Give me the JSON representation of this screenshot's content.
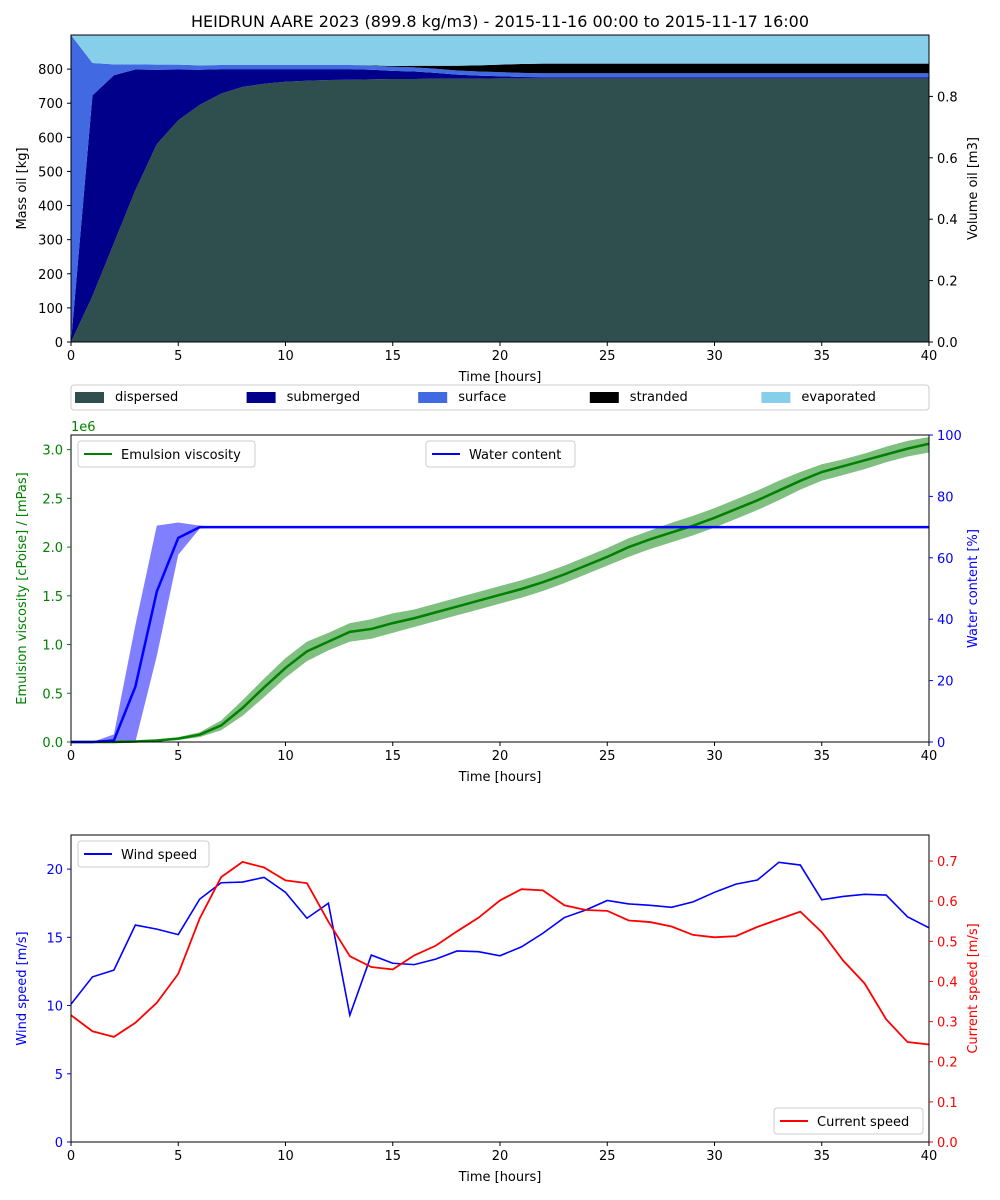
{
  "title": "HEIDRUN AARE 2023 (899.8 kg/m3) - 2015-11-16 00:00 to 2015-11-17 16:00",
  "chart_data": [
    {
      "type": "area",
      "subtype": "stacked",
      "xlabel": "Time  [hours]",
      "ylabel": "Mass oil  [kg]",
      "ylabel_right": "Volume oil [m3]",
      "xlim": [
        0,
        40
      ],
      "ylim": [
        0,
        900
      ],
      "ylim_right": [
        0,
        1.0
      ],
      "xticks": [
        0,
        5,
        10,
        15,
        20,
        25,
        30,
        35,
        40
      ],
      "yticks": [
        0,
        100,
        200,
        300,
        400,
        500,
        600,
        700,
        800
      ],
      "yticks_right": [
        "0.0",
        "0.2",
        "0.4",
        "0.6",
        "0.8"
      ],
      "legend_position": "below",
      "x": [
        0,
        1,
        2,
        3,
        4,
        5,
        6,
        7,
        8,
        9,
        10,
        11,
        12,
        13,
        14,
        15,
        16,
        17,
        18,
        19,
        20,
        21,
        22,
        23,
        24,
        25,
        26,
        27,
        28,
        29,
        30,
        31,
        32,
        33,
        34,
        35,
        36,
        37,
        38,
        39,
        40
      ],
      "series": [
        {
          "name": "dispersed",
          "color": "#2f4f4f",
          "values": [
            0,
            135,
            290,
            445,
            580,
            650,
            695,
            728,
            748,
            757,
            763,
            766,
            768,
            769,
            770,
            771,
            771,
            772,
            772,
            772,
            773,
            773,
            773,
            773,
            773,
            773,
            773,
            773,
            773,
            773,
            773,
            773,
            773,
            773,
            773,
            773,
            773,
            773,
            773,
            773,
            773
          ]
        },
        {
          "name": "submerged",
          "color": "#00008b",
          "values": [
            0,
            588,
            492,
            354,
            218,
            149,
            103,
            72,
            52,
            43,
            37,
            34,
            32,
            31,
            28,
            24,
            22,
            17,
            12,
            9,
            6,
            4,
            3,
            3,
            3,
            3,
            3,
            3,
            3,
            3,
            3,
            3,
            3,
            3,
            3,
            3,
            3,
            3,
            3,
            3,
            3
          ]
        },
        {
          "name": "surface",
          "color": "#4169e1",
          "values": [
            900,
            95,
            32,
            15,
            15,
            14,
            13,
            12,
            12,
            12,
            12,
            12,
            12,
            12,
            12,
            12,
            12,
            12,
            12,
            12,
            12,
            12,
            12,
            12,
            12,
            12,
            12,
            12,
            12,
            12,
            12,
            12,
            12,
            12,
            12,
            12,
            12,
            12,
            12,
            12,
            12
          ]
        },
        {
          "name": "stranded",
          "color": "#000000",
          "values": [
            0,
            0,
            0,
            0,
            0,
            0,
            0,
            0,
            0,
            0,
            0,
            0,
            0,
            0,
            1,
            2,
            5,
            9,
            14,
            18,
            22,
            26,
            28,
            28,
            28,
            28,
            28,
            28,
            28,
            28,
            28,
            28,
            28,
            28,
            28,
            28,
            28,
            28,
            28,
            28,
            28
          ]
        },
        {
          "name": "evaporated",
          "color": "#87ceeb",
          "values": [
            0,
            82,
            86,
            86,
            87,
            87,
            89,
            88,
            88,
            88,
            88,
            88,
            88,
            88,
            89,
            91,
            90,
            90,
            90,
            89,
            87,
            85,
            84,
            84,
            84,
            84,
            84,
            84,
            84,
            84,
            84,
            84,
            84,
            84,
            84,
            84,
            84,
            84,
            84,
            84,
            84
          ]
        }
      ]
    },
    {
      "type": "line",
      "xlabel": "Time [hours]",
      "ylabel": "Emulsion viscosity  [cPoise] / [mPas]",
      "ylabel_right": "Water content  [%]",
      "offset_text": "1e6",
      "xlim": [
        0,
        40
      ],
      "ylim": [
        0,
        3.15
      ],
      "ylim_right": [
        0,
        100
      ],
      "xticks": [
        0,
        5,
        10,
        15,
        20,
        25,
        30,
        35,
        40
      ],
      "yticks": [
        "0.0",
        "0.5",
        "1.0",
        "1.5",
        "2.0",
        "2.5",
        "3.0"
      ],
      "yticks_right": [
        0,
        20,
        40,
        60,
        80,
        100
      ],
      "left_color": "#008000",
      "right_color": "#0000ff",
      "series": [
        {
          "name": "Emulsion viscosity",
          "axis": "left",
          "color": "#008000",
          "legend_position": "upper left",
          "x": [
            0,
            1,
            2,
            3,
            4,
            5,
            6,
            7,
            8,
            9,
            10,
            11,
            12,
            13,
            14,
            15,
            16,
            17,
            18,
            19,
            20,
            21,
            22,
            23,
            24,
            25,
            26,
            27,
            28,
            29,
            30,
            31,
            32,
            33,
            34,
            35,
            36,
            37,
            38,
            39,
            40
          ],
          "values": [
            0,
            0,
            0,
            0.005,
            0.015,
            0.035,
            0.075,
            0.17,
            0.35,
            0.56,
            0.76,
            0.93,
            1.03,
            1.13,
            1.16,
            1.22,
            1.27,
            1.33,
            1.39,
            1.45,
            1.51,
            1.57,
            1.64,
            1.72,
            1.81,
            1.9,
            2.0,
            2.08,
            2.15,
            2.22,
            2.3,
            2.39,
            2.48,
            2.58,
            2.68,
            2.77,
            2.83,
            2.89,
            2.95,
            3.01,
            3.06
          ],
          "lower": [
            0,
            0,
            0,
            0,
            0.005,
            0.02,
            0.05,
            0.12,
            0.27,
            0.46,
            0.66,
            0.83,
            0.94,
            1.03,
            1.06,
            1.12,
            1.18,
            1.24,
            1.3,
            1.36,
            1.42,
            1.48,
            1.55,
            1.63,
            1.72,
            1.81,
            1.9,
            1.98,
            2.05,
            2.12,
            2.2,
            2.29,
            2.38,
            2.48,
            2.59,
            2.68,
            2.74,
            2.8,
            2.87,
            2.93,
            2.97
          ],
          "upper": [
            0,
            0,
            0,
            0.01,
            0.025,
            0.05,
            0.1,
            0.22,
            0.43,
            0.65,
            0.86,
            1.03,
            1.12,
            1.22,
            1.26,
            1.32,
            1.36,
            1.42,
            1.48,
            1.54,
            1.6,
            1.66,
            1.73,
            1.81,
            1.9,
            1.99,
            2.09,
            2.17,
            2.25,
            2.32,
            2.4,
            2.49,
            2.58,
            2.68,
            2.77,
            2.85,
            2.9,
            2.96,
            3.03,
            3.09,
            3.13
          ]
        },
        {
          "name": "Water content",
          "axis": "right",
          "color": "#0000ff",
          "legend_position": "upper center",
          "x": [
            0,
            1,
            2,
            3,
            4,
            5,
            6,
            7,
            8,
            9,
            10,
            11,
            12,
            13,
            14,
            15,
            16,
            17,
            18,
            19,
            20,
            21,
            22,
            23,
            24,
            25,
            26,
            27,
            28,
            29,
            30,
            31,
            32,
            33,
            34,
            35,
            36,
            37,
            38,
            39,
            40
          ],
          "values": [
            0,
            0,
            0.5,
            18,
            49,
            66.5,
            70,
            70,
            70,
            70,
            70,
            70,
            70,
            70,
            70,
            70,
            70,
            70,
            70,
            70,
            70,
            70,
            70,
            70,
            70,
            70,
            70,
            70,
            70,
            70,
            70,
            70,
            70,
            70,
            70,
            70,
            70,
            70,
            70,
            70,
            70
          ],
          "lower": [
            0,
            0,
            0,
            0,
            28,
            61,
            69.5,
            70,
            70,
            70,
            70,
            70,
            70,
            70,
            70,
            70,
            70,
            70,
            70,
            70,
            70,
            70,
            70,
            70,
            70,
            70,
            70,
            70,
            70,
            70,
            70,
            70,
            70,
            70,
            70,
            70,
            70,
            70,
            70,
            70,
            70
          ],
          "upper": [
            0,
            0,
            2.5,
            38,
            70.5,
            71.5,
            70.5,
            70,
            70,
            70,
            70,
            70,
            70,
            70,
            70,
            70,
            70,
            70,
            70,
            70,
            70,
            70,
            70,
            70,
            70,
            70,
            70,
            70,
            70,
            70,
            70,
            70,
            70,
            70,
            70,
            70,
            70,
            70,
            70,
            70,
            70
          ]
        }
      ]
    },
    {
      "type": "line",
      "xlabel": "Time  [hours]",
      "ylabel": "Wind speed  [m/s]",
      "ylabel_right": "Current speed  [m/s]",
      "xlim": [
        0,
        40
      ],
      "ylim": [
        0,
        22.5
      ],
      "ylim_right": [
        0,
        0.765
      ],
      "xticks": [
        0,
        5,
        10,
        15,
        20,
        25,
        30,
        35,
        40
      ],
      "yticks": [
        0,
        5,
        10,
        15,
        20
      ],
      "yticks_right": [
        "0.0",
        "0.1",
        "0.2",
        "0.3",
        "0.4",
        "0.5",
        "0.6",
        "0.7"
      ],
      "left_color": "#0000ff",
      "right_color": "#ff0000",
      "series": [
        {
          "name": "Wind speed",
          "axis": "left",
          "color": "#0000ff",
          "legend_position": "upper left",
          "x": [
            0,
            1,
            2,
            3,
            4,
            5,
            6,
            7,
            8,
            9,
            10,
            11,
            12,
            13,
            14,
            15,
            16,
            17,
            18,
            19,
            20,
            21,
            22,
            23,
            24,
            25,
            26,
            27,
            28,
            29,
            30,
            31,
            32,
            33,
            34,
            35,
            36,
            37,
            38,
            39,
            40
          ],
          "values": [
            10.1,
            12.1,
            12.6,
            15.9,
            15.6,
            15.2,
            17.8,
            19.0,
            19.05,
            19.4,
            18.3,
            16.4,
            17.5,
            9.3,
            13.7,
            13.1,
            13.0,
            13.4,
            14.0,
            13.95,
            13.65,
            14.3,
            15.3,
            16.45,
            17.0,
            17.7,
            17.45,
            17.35,
            17.2,
            17.6,
            18.3,
            18.9,
            19.2,
            20.5,
            20.3,
            17.75,
            18.0,
            18.15,
            18.1,
            16.5,
            15.7
          ]
        },
        {
          "name": "Current speed",
          "axis": "right",
          "color": "#ff0000",
          "legend_position": "lower right",
          "x": [
            0,
            1,
            2,
            3,
            4,
            5,
            6,
            7,
            8,
            9,
            10,
            11,
            12,
            13,
            14,
            15,
            16,
            17,
            18,
            19,
            20,
            21,
            22,
            23,
            24,
            25,
            26,
            27,
            28,
            29,
            30,
            31,
            32,
            33,
            34,
            35,
            36,
            37,
            38,
            39,
            40
          ],
          "values": [
            0.316,
            0.276,
            0.262,
            0.297,
            0.347,
            0.419,
            0.557,
            0.66,
            0.698,
            0.684,
            0.652,
            0.645,
            0.549,
            0.463,
            0.436,
            0.43,
            0.465,
            0.489,
            0.525,
            0.559,
            0.602,
            0.63,
            0.627,
            0.59,
            0.578,
            0.576,
            0.552,
            0.548,
            0.537,
            0.516,
            0.51,
            0.513,
            0.536,
            0.555,
            0.574,
            0.523,
            0.452,
            0.395,
            0.306,
            0.249,
            0.243
          ]
        }
      ]
    }
  ]
}
